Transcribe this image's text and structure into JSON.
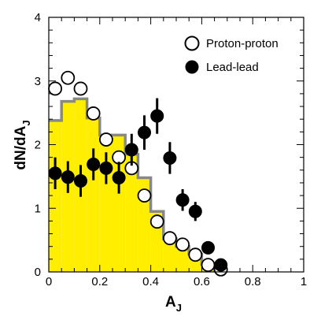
{
  "chart_data": {
    "type": "scatter",
    "xlabel": {
      "main": "A",
      "sub": "J"
    },
    "ylabel": {
      "main": "dN/dA",
      "sub": "J"
    },
    "xlim": [
      0,
      1
    ],
    "ylim": [
      0,
      4
    ],
    "xticks": [
      {
        "value": 0,
        "label": "0"
      },
      {
        "value": 0.2,
        "label": "0.2"
      },
      {
        "value": 0.4,
        "label": "0.4"
      },
      {
        "value": 0.6,
        "label": "0.6"
      },
      {
        "value": 0.8,
        "label": "0.8"
      },
      {
        "value": 1,
        "label": "1"
      }
    ],
    "yticks": [
      {
        "value": 0,
        "label": "0"
      },
      {
        "value": 1,
        "label": "1"
      },
      {
        "value": 2,
        "label": "2"
      },
      {
        "value": 3,
        "label": "3"
      },
      {
        "value": 4,
        "label": "4"
      }
    ],
    "legend": {
      "position": "top-right",
      "entries": [
        {
          "label": "Proton-proton",
          "marker": "open-circle"
        },
        {
          "label": "Lead-lead",
          "marker": "filled-circle"
        }
      ]
    },
    "colors": {
      "histogram_fill": "#ffee00",
      "histogram_outline": "#888888",
      "markers": "#000000"
    },
    "histogram": {
      "bin_width": 0.05,
      "bin_starts": [
        0,
        0.05,
        0.1,
        0.15,
        0.2,
        0.25,
        0.3,
        0.35,
        0.4,
        0.45,
        0.5,
        0.55,
        0.6
      ],
      "values": [
        2.38,
        2.68,
        2.72,
        2.42,
        2.15,
        2.15,
        1.85,
        1.48,
        0.95,
        0.52,
        0.4,
        0.28,
        0.12
      ]
    },
    "series": [
      {
        "name": "Proton-proton",
        "marker": "open-circle",
        "x": [
          0.025,
          0.075,
          0.125,
          0.175,
          0.225,
          0.275,
          0.325,
          0.375,
          0.425,
          0.475,
          0.525,
          0.575,
          0.625,
          0.675
        ],
        "y": [
          2.88,
          3.05,
          2.88,
          2.49,
          2.08,
          1.8,
          1.63,
          1.2,
          0.79,
          0.53,
          0.43,
          0.27,
          0.11,
          0.04
        ],
        "err": [
          0.05,
          0.05,
          0.05,
          0.05,
          0.05,
          0.05,
          0.05,
          0.04,
          0.04,
          0.03,
          0.03,
          0.02,
          0.02,
          0.01
        ]
      },
      {
        "name": "Lead-lead",
        "marker": "filled-circle",
        "x": [
          0.025,
          0.075,
          0.125,
          0.175,
          0.225,
          0.275,
          0.325,
          0.375,
          0.425,
          0.475,
          0.525,
          0.575,
          0.625,
          0.675
        ],
        "y": [
          1.55,
          1.49,
          1.43,
          1.69,
          1.63,
          1.48,
          1.92,
          2.19,
          2.45,
          1.79,
          1.13,
          0.95,
          0.38,
          0.11
        ],
        "err": [
          0.25,
          0.25,
          0.25,
          0.25,
          0.25,
          0.25,
          0.25,
          0.27,
          0.28,
          0.25,
          0.17,
          0.15,
          0.08,
          0.05
        ]
      }
    ]
  }
}
